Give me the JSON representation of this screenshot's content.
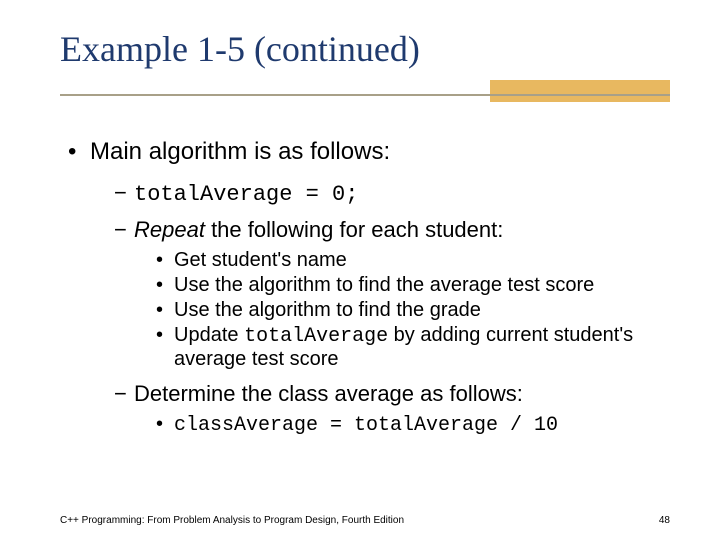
{
  "colors": {
    "title": "#1f3a6e",
    "rule_line": "#a8a088",
    "rule_accent": "#e8b860",
    "background": "#ffffff",
    "text": "#000000"
  },
  "title": "Example 1-5 (continued)",
  "bullet_main": "Main algorithm is as follows:",
  "sub1_code": "totalAverage = 0;",
  "sub2_pre_em": "Repeat",
  "sub2_rest": " the following for each student:",
  "sub2_items": {
    "a": "Get student's name",
    "b": "Use the algorithm to find the average test score",
    "c": "Use the algorithm to find the grade",
    "d_pre": "Update ",
    "d_code": "totalAverage",
    "d_post": " by adding current student's average test score"
  },
  "sub3": "Determine the class average as follows:",
  "sub3_item_code": "classAverage = totalAverage / 10",
  "footer_text": "C++ Programming: From Problem Analysis to Program Design, Fourth Edition",
  "page_number": "48"
}
